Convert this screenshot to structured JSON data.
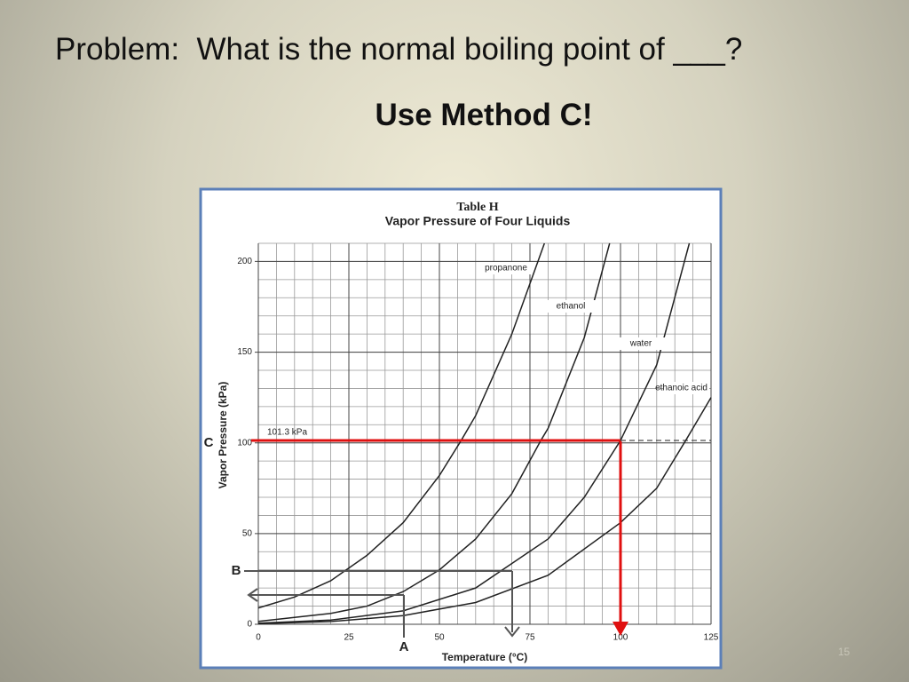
{
  "slide": {
    "title": "Problem:  What is the normal boiling point of ___?",
    "subtitle": "Use Method C!",
    "page_number": "15"
  },
  "chart_data": {
    "type": "line",
    "title": "Table H",
    "subtitle": "Vapor Pressure of Four Liquids",
    "xlabel": "Temperature (°C)",
    "ylabel": "Vapor Pressure (kPa)",
    "xlim": [
      0,
      125
    ],
    "ylim": [
      0,
      210
    ],
    "xticks": [
      0,
      25,
      50,
      75,
      100,
      125
    ],
    "yticks": [
      0,
      50,
      100,
      150,
      200
    ],
    "grid": true,
    "minor_grid": {
      "x": 5,
      "y": 10
    },
    "series": [
      {
        "name": "propanone",
        "color": "#222222",
        "x": [
          0,
          10,
          20,
          30,
          40,
          50,
          56,
          60,
          70,
          79
        ],
        "values": [
          9,
          15,
          24,
          38,
          56,
          82,
          101.3,
          115,
          160,
          210
        ]
      },
      {
        "name": "ethanol",
        "color": "#222222",
        "x": [
          0,
          20,
          30,
          40,
          50,
          60,
          70,
          78,
          80,
          90,
          97
        ],
        "values": [
          1.6,
          6,
          10,
          18,
          30,
          47,
          72,
          101.3,
          108,
          158,
          210
        ]
      },
      {
        "name": "water",
        "color": "#222222",
        "x": [
          0,
          20,
          40,
          60,
          80,
          90,
          100,
          110,
          119
        ],
        "values": [
          0.6,
          2.3,
          7.4,
          20,
          47,
          70,
          101.3,
          143,
          210
        ]
      },
      {
        "name": "ethanoic acid",
        "color": "#222222",
        "x": [
          0,
          20,
          40,
          60,
          80,
          100,
          110,
          118,
          125
        ],
        "values": [
          0.3,
          1.5,
          4.8,
          12,
          27,
          56,
          75,
          101.3,
          125
        ]
      }
    ],
    "reference": {
      "value": 101.3,
      "label": "101.3 kPa",
      "color": "#e01010"
    },
    "markers": [
      "C",
      "B",
      "A"
    ]
  }
}
